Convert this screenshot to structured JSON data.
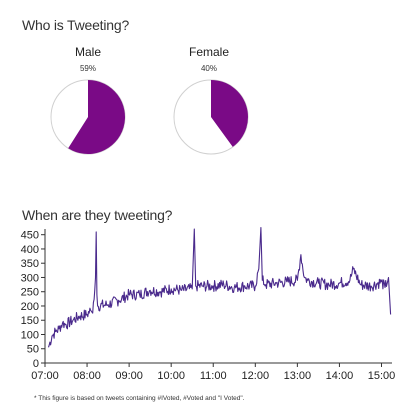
{
  "titles": {
    "pies": "Who is Tweeting?",
    "line": "When are they tweeting?"
  },
  "footnote": "* This figure is based on tweets containing #IVoted, #Voted and \"I Voted\".",
  "colors": {
    "accent": "#7a0a86",
    "line": "#4a2a8c",
    "pie_rest": "#ffffff",
    "pie_stroke": "#d0d0d0"
  },
  "chart_data": [
    {
      "type": "pie",
      "title": "Male",
      "slices": [
        {
          "label": "Male",
          "value": 59,
          "display": "59%"
        },
        {
          "label": "",
          "value": 41
        }
      ]
    },
    {
      "type": "pie",
      "title": "Female",
      "slices": [
        {
          "label": "Female",
          "value": 40,
          "display": "40%"
        },
        {
          "label": "",
          "value": 60
        }
      ]
    },
    {
      "type": "line",
      "title": "When are they tweeting?",
      "xlabel": "",
      "ylabel": "",
      "xticks": [
        "07:00",
        "08:00",
        "09:00",
        "10:00",
        "11:00",
        "12:00",
        "13:00",
        "14:00",
        "15:00"
      ],
      "yticks": [
        0,
        50,
        100,
        150,
        200,
        250,
        300,
        350,
        400,
        450
      ],
      "xlim": [
        "07:00",
        "15:15"
      ],
      "ylim": [
        0,
        470
      ],
      "grid": false,
      "series": [
        {
          "name": "",
          "points": [
            [
              "07:05",
              55
            ],
            [
              "07:10",
              95
            ],
            [
              "07:15",
              110
            ],
            [
              "07:20",
              120
            ],
            [
              "07:25",
              140
            ],
            [
              "07:30",
              135
            ],
            [
              "07:40",
              150
            ],
            [
              "07:50",
              165
            ],
            [
              "08:00",
              170
            ],
            [
              "08:05",
              185
            ],
            [
              "08:08",
              175
            ],
            [
              "08:12",
              300
            ],
            [
              "08:13",
              460
            ],
            [
              "08:14",
              240
            ],
            [
              "08:15",
              200
            ],
            [
              "08:30",
              205
            ],
            [
              "08:45",
              220
            ],
            [
              "09:00",
              240
            ],
            [
              "09:15",
              240
            ],
            [
              "09:30",
              255
            ],
            [
              "09:45",
              250
            ],
            [
              "10:00",
              260
            ],
            [
              "10:15",
              255
            ],
            [
              "10:30",
              260
            ],
            [
              "10:33",
              470
            ],
            [
              "10:35",
              270
            ],
            [
              "10:45",
              270
            ],
            [
              "11:00",
              270
            ],
            [
              "11:15",
              275
            ],
            [
              "11:30",
              265
            ],
            [
              "11:45",
              270
            ],
            [
              "12:00",
              270
            ],
            [
              "12:05",
              330
            ],
            [
              "12:08",
              475
            ],
            [
              "12:10",
              290
            ],
            [
              "12:15",
              275
            ],
            [
              "12:30",
              280
            ],
            [
              "12:45",
              285
            ],
            [
              "13:00",
              290
            ],
            [
              "13:05",
              380
            ],
            [
              "13:10",
              300
            ],
            [
              "13:15",
              290
            ],
            [
              "13:30",
              280
            ],
            [
              "13:45",
              275
            ],
            [
              "14:00",
              280
            ],
            [
              "14:15",
              290
            ],
            [
              "14:20",
              330
            ],
            [
              "14:30",
              275
            ],
            [
              "14:45",
              270
            ],
            [
              "15:00",
              285
            ],
            [
              "15:05",
              265
            ],
            [
              "15:10",
              300
            ],
            [
              "15:13",
              170
            ]
          ]
        }
      ]
    }
  ]
}
